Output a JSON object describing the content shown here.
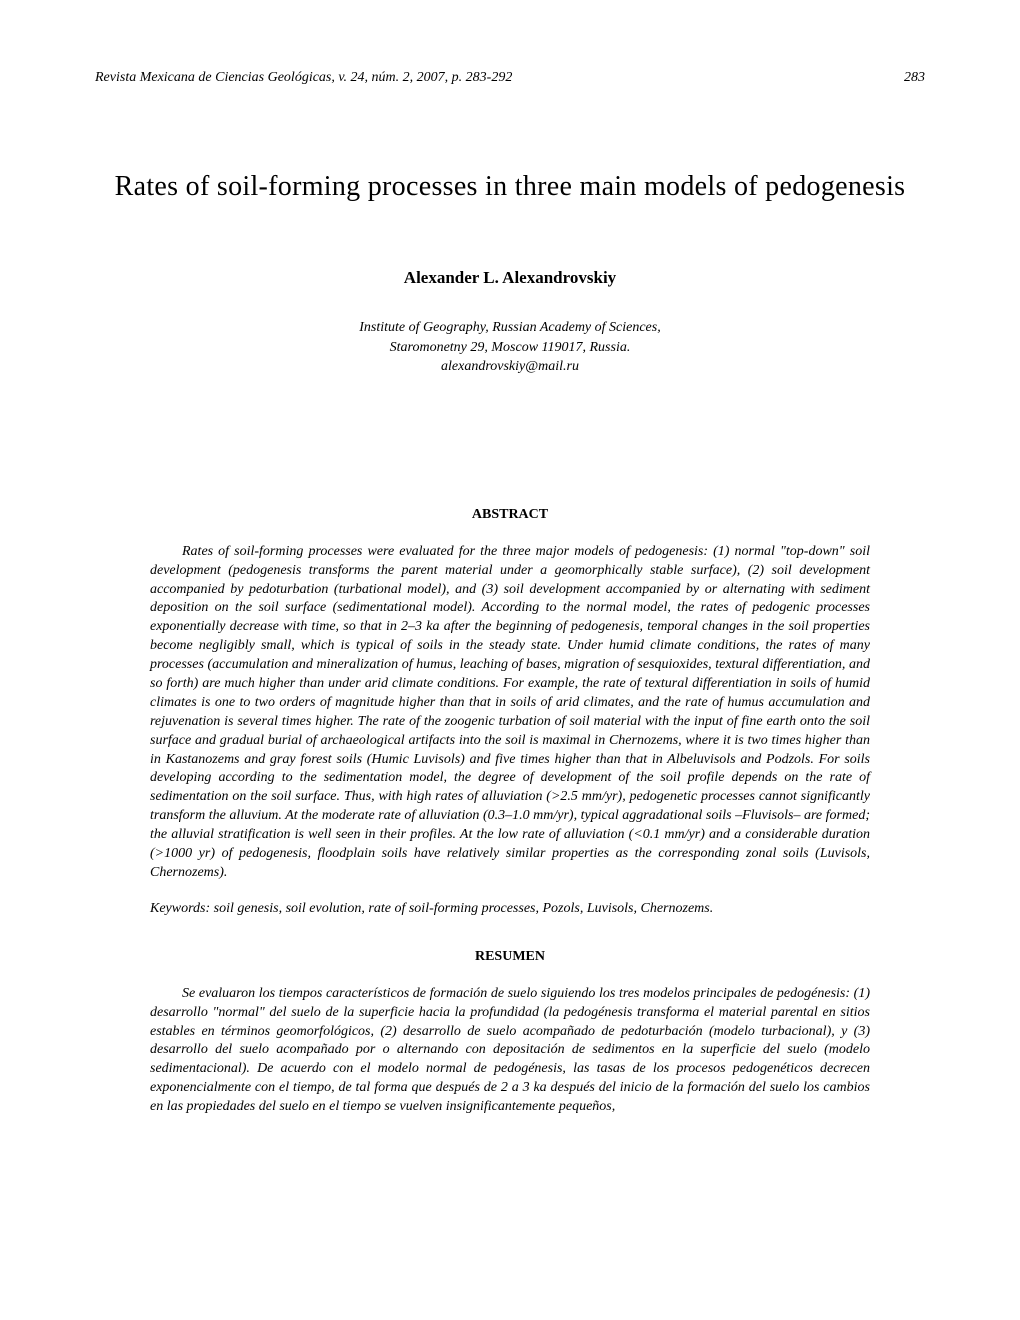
{
  "header": {
    "journal": "Revista Mexicana de Ciencias Geológicas, v. 24, núm. 2, 2007, p. 283-292",
    "page_number": "283"
  },
  "title": "Rates of soil-forming processes in three main models of pedogenesis",
  "author": "Alexander L. Alexandrovskiy",
  "affiliation": {
    "line1": "Institute of Geography, Russian Academy of Sciences,",
    "line2": "Staromonetny 29, Moscow 119017, Russia.",
    "line3": "alexandrovskiy@mail.ru"
  },
  "abstract_heading": "ABSTRACT",
  "abstract_text": "Rates of soil-forming processes were evaluated for the three major models of pedogenesis: (1) normal \"top-down\" soil development (pedogenesis transforms the parent material under a geomorphically stable surface), (2) soil development accompanied by pedoturbation (turbational model), and (3) soil development accompanied by or alternating with sediment deposition on the soil surface (sedimentational model). According to the normal model, the rates of pedogenic processes exponentially decrease with time, so that in 2–3 ka after the beginning of pedogenesis, temporal changes in the soil properties become negligibly small, which is typical of soils in the steady state. Under humid climate conditions, the rates of many processes (accumulation and mineralization of humus, leaching of bases, migration of sesquioxides, textural differentiation, and so forth) are much higher than under arid climate conditions. For example, the rate of textural differentiation in soils of humid climates is one to two orders of magnitude higher than that in soils of arid climates, and the rate of humus accumulation and rejuvenation is several times higher. The rate of the zoogenic turbation of soil material with the input of fine earth onto the soil surface and gradual burial of archaeological artifacts into the soil is maximal in Chernozems, where it is two times higher than in Kastanozems and gray forest soils (Humic Luvisols) and five times higher than that in Albeluvisols and Podzols. For soils developing according to the sedimentation model, the degree of development of the soil profile depends on the rate of sedimentation on the soil surface. Thus, with high rates of alluviation (>2.5 mm/yr), pedogenetic processes cannot significantly transform the alluvium. At the moderate rate of alluviation (0.3–1.0 mm/yr), typical aggradational soils –Fluvisols– are formed; the alluvial stratification is well seen in their profiles. At the low rate of alluviation (<0.1 mm/yr) and a considerable duration (>1000 yr) of pedogenesis, floodplain soils have relatively similar properties as the corresponding zonal soils (Luvisols, Chernozems).",
  "keywords": "Keywords: soil genesis, soil evolution, rate of soil-forming processes, Pozols, Luvisols, Chernozems.",
  "resumen_heading": "RESUMEN",
  "resumen_text": "Se evaluaron los tiempos característicos de formación de suelo siguiendo los tres modelos principales de pedogénesis: (1) desarrollo \"normal\" del suelo de la superficie hacia la profundidad (la pedogénesis transforma el material parental en sitios estables en términos geomorfológicos, (2) desarrollo de suelo acompañado de pedoturbación (modelo turbacional), y (3) desarrollo del suelo acompañado por o alternando con depositación de sedimentos en la superficie del suelo (modelo sedimentacional). De acuerdo con el modelo normal de pedogénesis, las tasas de los procesos pedogenéticos decrecen exponencialmente con el tiempo, de tal forma que después de 2 a 3 ka después del inicio de la formación del suelo los cambios en las propiedades del suelo en el tiempo se vuelven insignificantemente pequeños,"
}
